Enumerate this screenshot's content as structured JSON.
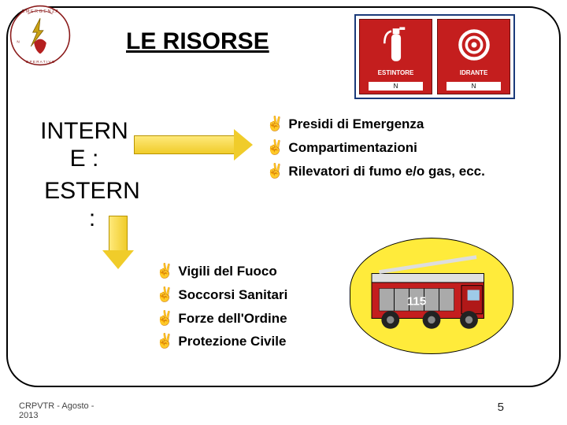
{
  "title": "LE RISORSE",
  "labels": {
    "intern": "INTERN\nE :",
    "estern": "ESTERN\n:"
  },
  "signs": {
    "left": {
      "label": "ESTINTORE",
      "sub": "N"
    },
    "right": {
      "label": "IDRANTE",
      "sub": "N"
    }
  },
  "right_list": [
    "Presidi di Emergenza",
    "Compartimentazioni",
    "Rilevatori di fumo e/o gas, ecc."
  ],
  "bottom_list": [
    "Vigili del Fuoco",
    "Soccorsi Sanitari",
    "Forze dell'Ordine",
    "Protezione Civile"
  ],
  "firetruck_sidenum": "115",
  "footer": {
    "left": "CRPVTR - Agosto -\n2013",
    "page": "5"
  },
  "colors": {
    "sign_bg": "#c41e1e",
    "arrow_fill": "#f0cc2a",
    "highlight": "#ffeb3b",
    "frame_border": "#000000"
  },
  "bullet_glyph": "✌"
}
